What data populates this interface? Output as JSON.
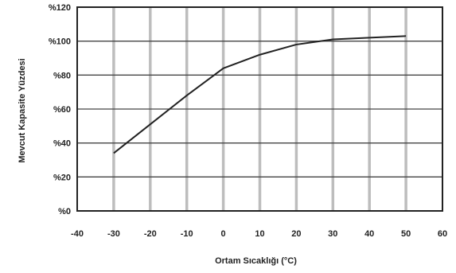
{
  "chart_data": {
    "type": "line",
    "title": "",
    "xlabel": "Ortam Sıcaklığı (°C)",
    "ylabel": "Mevcut Kapasite Yüzdesi",
    "xlim": [
      -40,
      60
    ],
    "ylim": [
      0,
      120
    ],
    "x_ticks": [
      -40,
      -30,
      -20,
      -10,
      0,
      10,
      20,
      30,
      40,
      50,
      60
    ],
    "x_tick_labels": [
      "-40",
      "-30",
      "-20",
      "-10",
      "0",
      "10",
      "20",
      "30",
      "40",
      "50",
      "60"
    ],
    "y_ticks": [
      0,
      20,
      40,
      60,
      80,
      100,
      120
    ],
    "y_tick_labels": [
      "%0",
      "%20",
      "%40",
      "%60",
      "%80",
      "%100",
      "%120"
    ],
    "grid": true,
    "series": [
      {
        "x": [
          -30,
          -20,
          -10,
          0,
          10,
          20,
          30,
          40,
          50
        ],
        "y": [
          34,
          51,
          68,
          84,
          92,
          98,
          101,
          102,
          103
        ]
      }
    ],
    "colors": {
      "line": "#222222",
      "grid_vertical": "#bdbdbd",
      "grid_horizontal": "#444444",
      "frame": "#222222"
    }
  }
}
